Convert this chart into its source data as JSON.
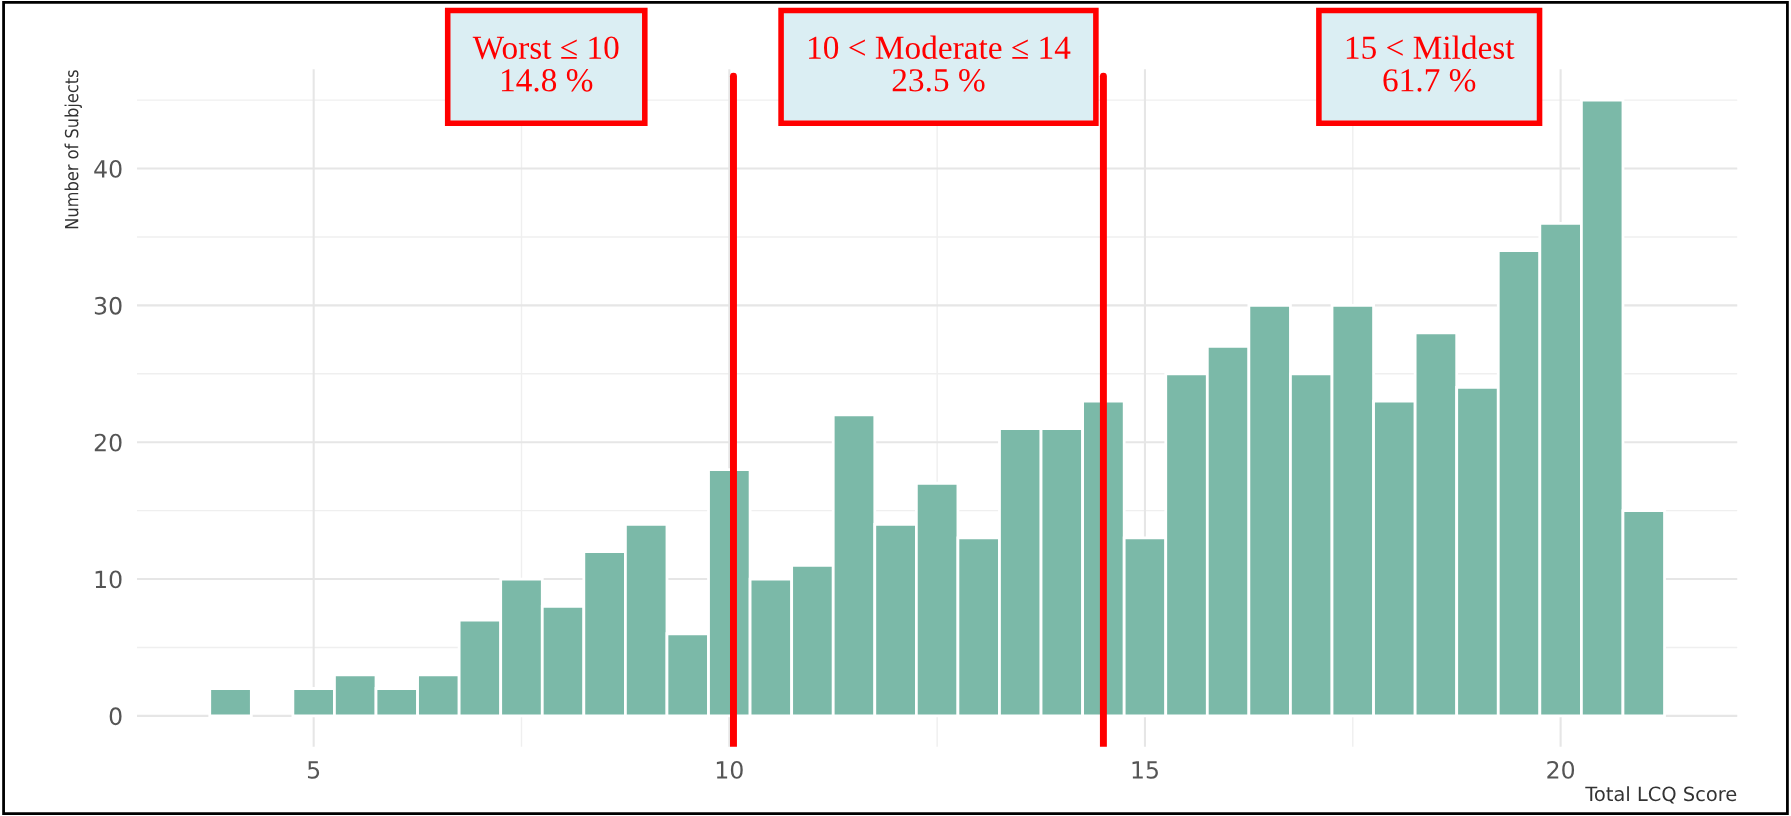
{
  "chart_data": {
    "type": "histogram",
    "xlabel": "Total LCQ Score",
    "ylabel": "Number of Subjects",
    "bins": [
      3.75,
      4.25,
      4.75,
      5.25,
      5.75,
      6.25,
      6.75,
      7.25,
      7.75,
      8.25,
      8.75,
      9.25,
      9.75,
      10.25,
      10.75,
      11.25,
      11.75,
      12.25,
      12.75,
      13.25,
      13.75,
      14.25,
      14.75,
      15.25,
      15.75,
      16.25,
      16.75,
      17.25,
      17.75,
      18.25,
      18.75,
      19.25,
      19.75,
      20.25,
      20.75,
      21.25
    ],
    "values": [
      2,
      0,
      2,
      3,
      2,
      3,
      7,
      10,
      8,
      12,
      14,
      6,
      18,
      10,
      11,
      22,
      14,
      17,
      13,
      21,
      21,
      23,
      13,
      25,
      27,
      30,
      25,
      30,
      23,
      28,
      24,
      34,
      36,
      45,
      15
    ],
    "color": "#7bb9a8",
    "xlim": [
      2.875,
      22.125
    ],
    "xticks": [
      5,
      10,
      15,
      20
    ],
    "ylim": [
      -2.25,
      47.25
    ],
    "yticks": [
      0,
      10,
      20,
      30,
      40
    ],
    "grid": true,
    "ref_lines": [
      {
        "axis": "x",
        "value": 10.05,
        "color": "#ff0000"
      },
      {
        "axis": "x",
        "value": 14.5,
        "color": "#ff0000"
      }
    ],
    "annotations": [
      "Worst ≤ 10\n14.8 %",
      "10 < Moderate ≤ 14\n23.5 %",
      "15 < Mildest\n61.7 %"
    ]
  }
}
